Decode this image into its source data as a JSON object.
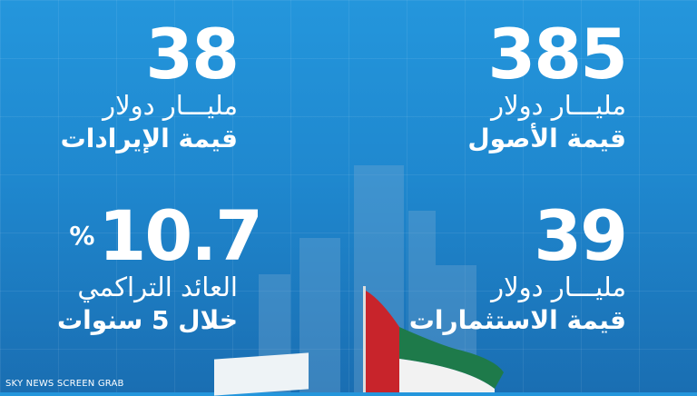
{
  "stats": [
    {
      "value": "385",
      "unit": "مليـــار دولار",
      "label": "قيمة الأصول"
    },
    {
      "value": "38",
      "unit": "مليـــار دولار",
      "label": "قيمة الإيرادات"
    },
    {
      "value": "39",
      "unit": "مليـــار دولار",
      "label": "قيمة الاستثمارات"
    },
    {
      "value": "10.7",
      "suffix": "%",
      "unit": "العائد التراكمي",
      "label": "خلال 5 سنوات"
    }
  ],
  "watermark": "SKY NEWS SCREEN GRAB",
  "colors": {
    "background": "#1f88cf",
    "flag_red": "#c8242b",
    "flag_green": "#1e7a4a",
    "text": "#ffffff"
  }
}
